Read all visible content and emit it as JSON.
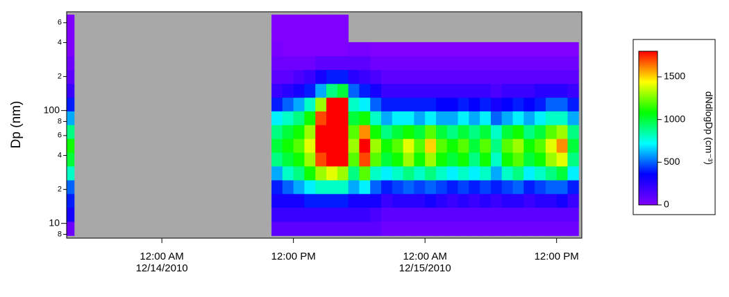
{
  "chart_data": {
    "type": "heatmap",
    "ylabel": "Dp (nm)",
    "colorbar_label": "dNdlogDp (cm⁻³)",
    "log_y": true,
    "missing_color": "#a8a8a8",
    "colors": [
      "#8000ff",
      "#0000ff",
      "#00ffff",
      "#00ff00",
      "#ffff00",
      "#ff0000"
    ],
    "xlim": [
      "2010-12-13T15:19",
      "2010-12-15T14:18"
    ],
    "xticks": [
      {
        "value": "2010-12-14T00:00",
        "label": "12:00 AM\n12/14/2010"
      },
      {
        "value": "2010-12-14T12:00",
        "label": "12:00 PM"
      },
      {
        "value": "2010-12-15T00:00",
        "label": "12:00 AM\n12/15/2010"
      },
      {
        "value": "2010-12-15T12:00",
        "label": "12:00 PM"
      }
    ],
    "ylim": [
      7.4,
      750
    ],
    "yticks": [
      {
        "value": 600,
        "label": "6"
      },
      {
        "value": 400,
        "label": "4"
      },
      {
        "value": 200,
        "label": "2"
      },
      100,
      {
        "value": 80,
        "label": "8"
      },
      {
        "value": 60,
        "label": "6"
      },
      {
        "value": 40,
        "label": "4"
      },
      {
        "value": 20,
        "label": "2"
      },
      10,
      {
        "value": 8,
        "label": "8"
      }
    ],
    "zlim": [
      0,
      1800
    ],
    "zticks": [
      0,
      500,
      1000,
      1500
    ],
    "y": [
      9,
      12,
      16,
      21,
      28,
      37,
      49,
      65,
      86,
      114,
      150,
      200,
      265,
      350,
      465,
      615
    ],
    "x": [
      "2010-12-13T15:30",
      "2010-12-14T10:30",
      "2010-12-14T11:30",
      "2010-12-14T12:30",
      "2010-12-14T13:30",
      "2010-12-14T14:30",
      "2010-12-14T15:30",
      "2010-12-14T16:30",
      "2010-12-14T17:30",
      "2010-12-14T18:30",
      "2010-12-14T19:30",
      "2010-12-14T20:30",
      "2010-12-14T21:30",
      "2010-12-14T22:30",
      "2010-12-14T23:30",
      "2010-12-15T00:30",
      "2010-12-15T01:30",
      "2010-12-15T02:30",
      "2010-12-15T03:30",
      "2010-12-15T04:30",
      "2010-12-15T05:30",
      "2010-12-15T06:30",
      "2010-12-15T07:30",
      "2010-12-15T08:30",
      "2010-12-15T09:30",
      "2010-12-15T10:30",
      "2010-12-15T11:30",
      "2010-12-15T12:30",
      "2010-12-15T13:30"
    ],
    "values": [
      [
        50,
        300,
        400,
        500,
        800,
        1000,
        1100,
        900,
        600,
        400,
        200,
        100,
        50,
        0,
        0,
        0
      ],
      [
        100,
        200,
        300,
        400,
        600,
        900,
        1000,
        900,
        700,
        400,
        200,
        100,
        50,
        20,
        0,
        0
      ],
      [
        100,
        200,
        300,
        500,
        800,
        1000,
        1100,
        1000,
        800,
        500,
        250,
        100,
        50,
        0,
        0,
        0
      ],
      [
        100,
        200,
        300,
        600,
        900,
        1100,
        1200,
        1100,
        900,
        600,
        300,
        150,
        50,
        0,
        0,
        0
      ],
      [
        100,
        200,
        400,
        700,
        1100,
        1300,
        1400,
        1300,
        1100,
        800,
        400,
        200,
        50,
        0,
        0,
        0
      ],
      [
        100,
        200,
        400,
        800,
        1300,
        1700,
        1900,
        1900,
        1700,
        1300,
        600,
        300,
        100,
        0,
        0,
        0
      ],
      [
        100,
        200,
        400,
        800,
        1400,
        1900,
        1900,
        1900,
        1900,
        1900,
        900,
        400,
        100,
        0,
        0,
        0
      ],
      [
        100,
        200,
        400,
        800,
        1300,
        1900,
        1900,
        1900,
        1900,
        1900,
        1000,
        400,
        100,
        0,
        0,
        0
      ],
      [
        100,
        200,
        300,
        600,
        900,
        1200,
        1300,
        1200,
        1000,
        800,
        500,
        250,
        100,
        20,
        null,
        null
      ],
      [
        100,
        200,
        300,
        700,
        1200,
        1700,
        1800,
        1600,
        1100,
        700,
        400,
        200,
        100,
        20,
        null,
        null
      ],
      [
        100,
        150,
        300,
        500,
        800,
        1200,
        1300,
        1100,
        800,
        500,
        300,
        150,
        50,
        0,
        null,
        null
      ],
      [
        50,
        100,
        200,
        400,
        700,
        1000,
        1100,
        900,
        600,
        400,
        200,
        100,
        50,
        0,
        null,
        null
      ],
      [
        50,
        100,
        250,
        450,
        800,
        1100,
        1200,
        1000,
        700,
        400,
        200,
        100,
        50,
        0,
        null,
        null
      ],
      [
        50,
        100,
        250,
        500,
        900,
        1300,
        1400,
        1100,
        700,
        400,
        200,
        100,
        50,
        0,
        null,
        null
      ],
      [
        50,
        100,
        250,
        450,
        800,
        1100,
        1200,
        1000,
        600,
        400,
        200,
        100,
        50,
        0,
        null,
        null
      ],
      [
        50,
        100,
        300,
        500,
        900,
        1300,
        1500,
        1200,
        700,
        400,
        200,
        100,
        50,
        0,
        null,
        null
      ],
      [
        50,
        100,
        250,
        450,
        800,
        1100,
        1200,
        1000,
        600,
        350,
        200,
        100,
        50,
        0,
        null,
        null
      ],
      [
        50,
        100,
        200,
        400,
        700,
        1000,
        1100,
        900,
        600,
        350,
        200,
        100,
        50,
        0,
        null,
        null
      ],
      [
        50,
        100,
        250,
        450,
        800,
        1100,
        1200,
        1000,
        700,
        400,
        200,
        100,
        50,
        0,
        null,
        null
      ],
      [
        50,
        100,
        200,
        400,
        700,
        900,
        1000,
        900,
        600,
        350,
        200,
        100,
        50,
        0,
        null,
        null
      ],
      [
        50,
        100,
        250,
        450,
        800,
        1100,
        1200,
        1000,
        700,
        400,
        200,
        100,
        50,
        0,
        null,
        null
      ],
      [
        50,
        100,
        200,
        400,
        600,
        800,
        900,
        800,
        500,
        300,
        150,
        100,
        50,
        0,
        null,
        null
      ],
      [
        50,
        100,
        250,
        450,
        800,
        1100,
        1200,
        1000,
        600,
        350,
        200,
        100,
        50,
        0,
        null,
        null
      ],
      [
        50,
        100,
        250,
        500,
        900,
        1200,
        1300,
        1100,
        700,
        400,
        200,
        100,
        50,
        0,
        null,
        null
      ],
      [
        50,
        100,
        200,
        400,
        700,
        1000,
        1100,
        900,
        600,
        350,
        200,
        100,
        50,
        0,
        null,
        null
      ],
      [
        50,
        100,
        250,
        450,
        800,
        1100,
        1200,
        1000,
        700,
        400,
        250,
        100,
        50,
        0,
        null,
        null
      ],
      [
        50,
        100,
        250,
        500,
        900,
        1300,
        1400,
        1200,
        800,
        500,
        250,
        100,
        50,
        0,
        null,
        null
      ],
      [
        50,
        100,
        300,
        500,
        1000,
        1400,
        1600,
        1300,
        800,
        500,
        250,
        100,
        50,
        0,
        null,
        null
      ],
      [
        50,
        100,
        200,
        400,
        700,
        900,
        1000,
        900,
        600,
        400,
        200,
        100,
        50,
        0,
        null,
        null
      ]
    ]
  }
}
